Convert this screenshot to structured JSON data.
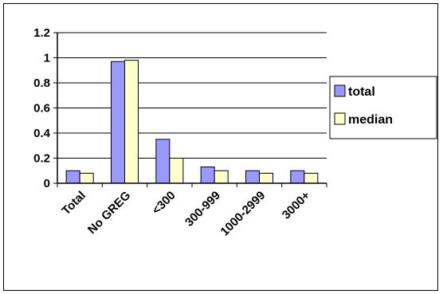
{
  "chart_data": {
    "type": "bar",
    "categories": [
      "Total",
      "No GREG",
      "<300",
      "300-999",
      "1000-2999",
      "3000+"
    ],
    "series": [
      {
        "name": "total",
        "values": [
          0.1,
          0.97,
          0.35,
          0.13,
          0.1,
          0.1
        ],
        "color": "#9999ff"
      },
      {
        "name": "median",
        "values": [
          0.08,
          0.98,
          0.2,
          0.1,
          0.08,
          0.08
        ],
        "color": "#ffffcc"
      }
    ],
    "title": "",
    "xlabel": "",
    "ylabel": "",
    "ylim": [
      0,
      1.2
    ],
    "yticks": [
      "0",
      "0.2",
      "0.4",
      "0.6",
      "0.8",
      "1",
      "1.2"
    ],
    "grid": true,
    "legend": "right"
  }
}
